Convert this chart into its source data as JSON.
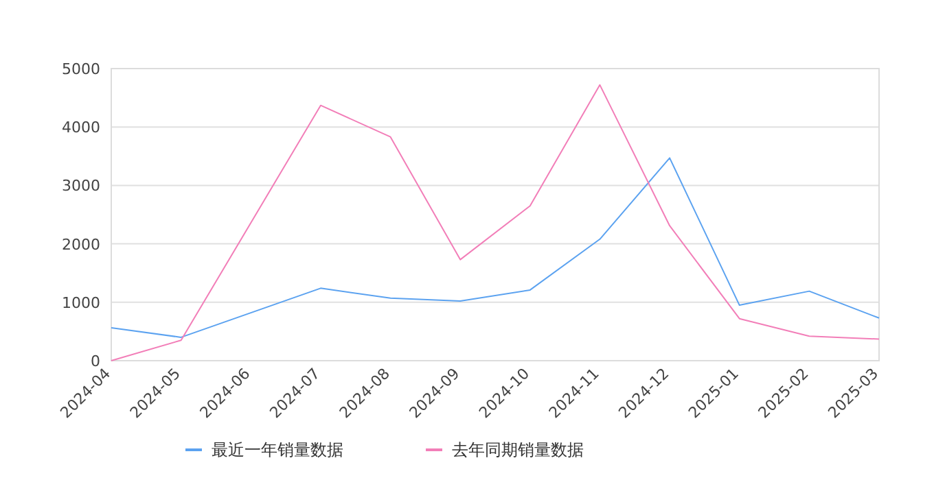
{
  "chart_data": {
    "type": "line",
    "categories": [
      "2024-04",
      "2024-05",
      "2024-06",
      "2024-07",
      "2024-08",
      "2024-09",
      "2024-10",
      "2024-11",
      "2024-12",
      "2025-01",
      "2025-02",
      "2025-03"
    ],
    "series": [
      {
        "name": "最近一年销量数据",
        "color": "#5ba2f0",
        "values": [
          563,
          400,
          null,
          1240,
          1070,
          1020,
          1210,
          2080,
          3470,
          950,
          1190,
          730
        ]
      },
      {
        "name": "去年同期销量数据",
        "color": "#f27eb8",
        "values": [
          0,
          350,
          null,
          4370,
          3830,
          1730,
          2650,
          4720,
          2310,
          720,
          420,
          370
        ]
      }
    ],
    "ylim": [
      0,
      5000
    ],
    "yticks": [
      0,
      1000,
      2000,
      3000,
      4000,
      5000
    ],
    "grid": "y",
    "legend": "bottom",
    "marker": "none",
    "line_style": "solid"
  }
}
